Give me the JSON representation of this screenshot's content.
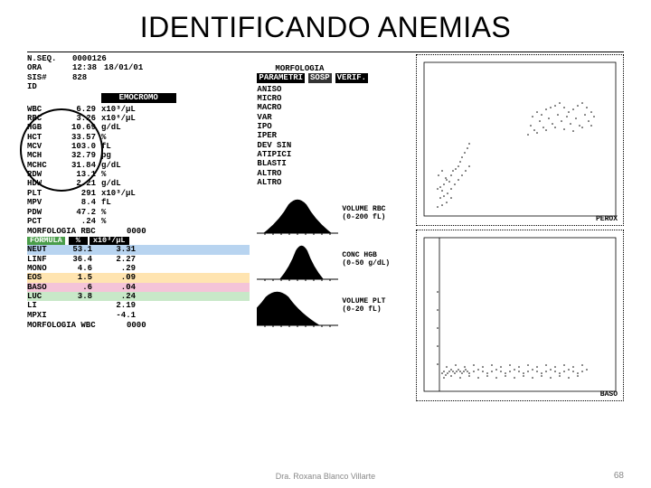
{
  "title": "IDENTIFICANDO ANEMIAS",
  "header": {
    "nseq_label": "N.SEQ.",
    "nseq": "0000126",
    "ora_label": "ORA",
    "ora": "12:38",
    "date": "18/01/01",
    "sis_label": "SIS#",
    "sis": "828",
    "id_label": "ID",
    "morfologia": "MORFOLOGIA",
    "parametri": "PARAMETRI",
    "sosp": "SOSP",
    "verif": "VERIF."
  },
  "emocromo_label": "EMOCROMO",
  "cbc": [
    {
      "label": "WBC",
      "val": "6.29",
      "unit": "x10³/µL"
    },
    {
      "label": "RBC",
      "val": "3.26",
      "unit": "x10⁶/µL"
    },
    {
      "label": "HGB",
      "val": "10.69",
      "unit": "g/dL"
    },
    {
      "label": "HCT",
      "val": "33.57",
      "unit": "%"
    },
    {
      "label": "MCV",
      "val": "103.0",
      "unit": "fL"
    },
    {
      "label": "MCH",
      "val": "32.79",
      "unit": "pg"
    },
    {
      "label": "MCHC",
      "val": "31.84",
      "unit": "g/dL"
    },
    {
      "label": "RDW",
      "val": "13.1",
      "unit": "%"
    },
    {
      "label": "HDW",
      "val": "2.21",
      "unit": "g/dL"
    },
    {
      "label": "PLT",
      "val": "291",
      "unit": "x10³/µL"
    },
    {
      "label": "MPV",
      "val": "8.4",
      "unit": "fL"
    },
    {
      "label": "PDW",
      "val": "47.2",
      "unit": "%"
    },
    {
      "label": "PCT",
      "val": ".24",
      "unit": "%"
    }
  ],
  "morf_rbc": {
    "label": "MORFOLOGIA RBC",
    "val": "0000"
  },
  "formula_hdr": {
    "name": "FORMULA",
    "pct": "%",
    "abs": "x10³/µL"
  },
  "formula": [
    {
      "label": "NEUT",
      "pct": "53.1",
      "abs": "3.31",
      "bg": "#b8d4f0"
    },
    {
      "label": "LINF",
      "pct": "36.4",
      "abs": "2.27",
      "bg": "#ffffff"
    },
    {
      "label": "MONO",
      "pct": "4.6",
      "abs": ".29",
      "bg": "#ffffff"
    },
    {
      "label": "EOS",
      "pct": "1.5",
      "abs": ".09",
      "bg": "#ffe4b0"
    },
    {
      "label": "BASO",
      "pct": ".6",
      "abs": ".04",
      "bg": "#f4c4d8"
    },
    {
      "label": "LUC",
      "pct": "3.8",
      "abs": ".24",
      "bg": "#c8e8c8"
    },
    {
      "label": "LI",
      "pct": "",
      "abs": "2.19",
      "bg": "#ffffff"
    },
    {
      "label": "MPXI",
      "pct": "",
      "abs": "-4.1",
      "bg": "#ffffff"
    }
  ],
  "morf_wbc": {
    "label": "MORFOLOGIA WBC",
    "val": "0000"
  },
  "flags": [
    "ANISO",
    "MICRO",
    "MACRO",
    "VAR",
    "IPO",
    "IPER",
    "DEV SIN",
    "ATIPICI",
    "BLASTI",
    "ALTRO",
    "ALTRO"
  ],
  "histograms": [
    {
      "title": "VOLUME RBC",
      "range": "(0-200 fL)",
      "peak": 0.5,
      "width": 0.28,
      "color": "#000"
    },
    {
      "title": "CONC HGB",
      "range": "(0-50 g/dL)",
      "peak": 0.55,
      "width": 0.18,
      "color": "#000"
    },
    {
      "title": "VOLUME PLT",
      "range": "(0-20 fL)",
      "peak": 0.25,
      "width": 0.35,
      "color": "#000"
    }
  ],
  "scatter": {
    "perox_label": "PEROX",
    "baso_label": "BASO",
    "perox_points": [
      [
        15,
        140
      ],
      [
        18,
        138
      ],
      [
        20,
        142
      ],
      [
        22,
        135
      ],
      [
        25,
        130
      ],
      [
        16,
        125
      ],
      [
        20,
        120
      ],
      [
        24,
        128
      ],
      [
        28,
        132
      ],
      [
        30,
        125
      ],
      [
        32,
        120
      ],
      [
        35,
        118
      ],
      [
        38,
        115
      ],
      [
        40,
        110
      ],
      [
        42,
        105
      ],
      [
        45,
        100
      ],
      [
        48,
        95
      ],
      [
        50,
        90
      ],
      [
        18,
        150
      ],
      [
        22,
        148
      ],
      [
        26,
        145
      ],
      [
        30,
        140
      ],
      [
        34,
        135
      ],
      [
        38,
        130
      ],
      [
        42,
        125
      ],
      [
        46,
        120
      ],
      [
        50,
        115
      ],
      [
        15,
        160
      ],
      [
        20,
        158
      ],
      [
        25,
        155
      ],
      [
        30,
        150
      ],
      [
        120,
        60
      ],
      [
        125,
        55
      ],
      [
        130,
        58
      ],
      [
        135,
        52
      ],
      [
        140,
        50
      ],
      [
        145,
        48
      ],
      [
        150,
        45
      ],
      [
        155,
        50
      ],
      [
        160,
        55
      ],
      [
        165,
        52
      ],
      [
        170,
        48
      ],
      [
        175,
        45
      ],
      [
        180,
        50
      ],
      [
        185,
        55
      ],
      [
        118,
        70
      ],
      [
        128,
        65
      ],
      [
        138,
        62
      ],
      [
        148,
        58
      ],
      [
        158,
        60
      ],
      [
        168,
        62
      ],
      [
        178,
        58
      ],
      [
        188,
        60
      ],
      [
        122,
        75
      ],
      [
        132,
        72
      ],
      [
        142,
        68
      ],
      [
        152,
        65
      ],
      [
        162,
        68
      ],
      [
        172,
        70
      ],
      [
        182,
        65
      ],
      [
        115,
        80
      ],
      [
        125,
        78
      ],
      [
        135,
        75
      ],
      [
        145,
        72
      ],
      [
        155,
        74
      ],
      [
        165,
        76
      ],
      [
        175,
        72
      ],
      [
        185,
        70
      ]
    ],
    "baso_points": [
      [
        20,
        150
      ],
      [
        22,
        148
      ],
      [
        24,
        152
      ],
      [
        26,
        150
      ],
      [
        28,
        148
      ],
      [
        30,
        146
      ],
      [
        32,
        148
      ],
      [
        34,
        150
      ],
      [
        36,
        148
      ],
      [
        38,
        146
      ],
      [
        40,
        148
      ],
      [
        42,
        150
      ],
      [
        44,
        148
      ],
      [
        46,
        146
      ],
      [
        48,
        148
      ],
      [
        50,
        150
      ],
      [
        55,
        148
      ],
      [
        60,
        146
      ],
      [
        65,
        148
      ],
      [
        70,
        150
      ],
      [
        75,
        148
      ],
      [
        80,
        146
      ],
      [
        85,
        148
      ],
      [
        90,
        150
      ],
      [
        95,
        148
      ],
      [
        100,
        146
      ],
      [
        105,
        148
      ],
      [
        110,
        150
      ],
      [
        115,
        148
      ],
      [
        120,
        146
      ],
      [
        125,
        148
      ],
      [
        130,
        150
      ],
      [
        135,
        148
      ],
      [
        140,
        146
      ],
      [
        145,
        148
      ],
      [
        150,
        150
      ],
      [
        155,
        148
      ],
      [
        160,
        146
      ],
      [
        165,
        148
      ],
      [
        170,
        150
      ],
      [
        175,
        148
      ],
      [
        180,
        146
      ],
      [
        22,
        155
      ],
      [
        30,
        153
      ],
      [
        40,
        155
      ],
      [
        50,
        153
      ],
      [
        60,
        155
      ],
      [
        70,
        153
      ],
      [
        80,
        155
      ],
      [
        90,
        153
      ],
      [
        100,
        155
      ],
      [
        110,
        153
      ],
      [
        120,
        155
      ],
      [
        130,
        153
      ],
      [
        140,
        155
      ],
      [
        150,
        153
      ],
      [
        160,
        155
      ],
      [
        170,
        153
      ],
      [
        25,
        143
      ],
      [
        35,
        141
      ],
      [
        45,
        143
      ],
      [
        55,
        141
      ],
      [
        65,
        143
      ],
      [
        75,
        141
      ],
      [
        85,
        143
      ],
      [
        95,
        141
      ],
      [
        105,
        143
      ],
      [
        115,
        141
      ],
      [
        125,
        143
      ],
      [
        135,
        141
      ],
      [
        145,
        143
      ],
      [
        155,
        141
      ],
      [
        165,
        143
      ],
      [
        175,
        141
      ],
      [
        15,
        60
      ],
      [
        15,
        80
      ],
      [
        15,
        100
      ],
      [
        15,
        120
      ],
      [
        15,
        140
      ]
    ]
  },
  "footer": "Dra. Roxana Blanco Villarte",
  "page": "68"
}
